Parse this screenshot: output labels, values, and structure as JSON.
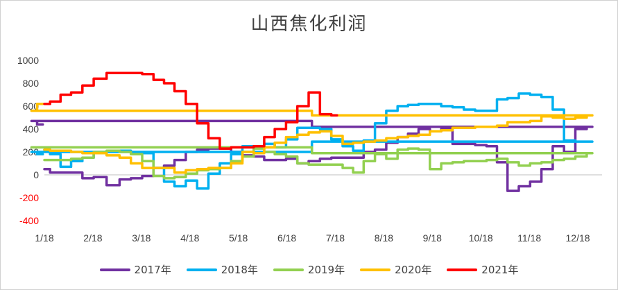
{
  "chart_data": {
    "type": "line",
    "title": "山西焦化利润",
    "xlabel": "",
    "ylabel": "",
    "x_ticks": [
      "1/18",
      "2/18",
      "3/18",
      "4/18",
      "5/18",
      "6/18",
      "7/18",
      "8/18",
      "9/18",
      "10/18",
      "11/18",
      "12/18"
    ],
    "y_ticks": [
      1000,
      800,
      600,
      400,
      200,
      0,
      -200,
      -400
    ],
    "ylim": [
      -400,
      1000
    ],
    "negative_tick_color": "#ff0000",
    "grid": false,
    "legend_position": "bottom",
    "series": [
      {
        "name": "2017年",
        "color": "#7030a0",
        "points": [
          [
            "1/18",
            50
          ],
          [
            "1/25",
            20
          ],
          [
            "2/1",
            20
          ],
          [
            "2/8",
            20
          ],
          [
            "2/15",
            -30
          ],
          [
            "2/22",
            -20
          ],
          [
            "3/1",
            -90
          ],
          [
            "3/8",
            -40
          ],
          [
            "3/15",
            -30
          ],
          [
            "3/22",
            -10
          ],
          [
            "3/29",
            60
          ],
          [
            "4/5",
            80
          ],
          [
            "4/12",
            130
          ],
          [
            "4/19",
            200
          ],
          [
            "4/26",
            220
          ],
          [
            "5/3",
            230
          ],
          [
            "5/10",
            230
          ],
          [
            "5/17",
            200
          ],
          [
            "5/24",
            170
          ],
          [
            "5/31",
            160
          ],
          [
            "6/7",
            130
          ],
          [
            "6/14",
            130
          ],
          [
            "6/21",
            140
          ],
          [
            "6/28",
            100
          ],
          [
            "7/5",
            120
          ],
          [
            "7/12",
            140
          ],
          [
            "7/19",
            150
          ],
          [
            "7/26",
            150
          ],
          [
            "8/2",
            150
          ],
          [
            "8/9",
            200
          ],
          [
            "8/16",
            220
          ],
          [
            "8/23",
            280
          ],
          [
            "8/30",
            330
          ],
          [
            "9/6",
            360
          ],
          [
            "9/13",
            400
          ],
          [
            "9/20",
            380
          ],
          [
            "9/27",
            400
          ],
          [
            "10/4",
            270
          ],
          [
            "10/11",
            270
          ],
          [
            "10/18",
            260
          ],
          [
            "10/25",
            250
          ],
          [
            "11/1",
            110
          ],
          [
            "11/8",
            -140
          ],
          [
            "11/15",
            -100
          ],
          [
            "11/22",
            -60
          ],
          [
            "11/29",
            50
          ],
          [
            "12/6",
            250
          ],
          [
            "12/13",
            200
          ],
          [
            "12/20",
            400
          ],
          [
            "12/27",
            420
          ],
          [
            "1/10",
            470
          ],
          [
            "1/17",
            440
          ]
        ]
      },
      {
        "name": "2018年",
        "color": "#00b0f0",
        "points": [
          [
            "1/18",
            220
          ],
          [
            "1/25",
            180
          ],
          [
            "2/1",
            70
          ],
          [
            "2/8",
            120
          ],
          [
            "2/15",
            150
          ],
          [
            "2/22",
            200
          ],
          [
            "3/1",
            200
          ],
          [
            "3/8",
            210
          ],
          [
            "3/15",
            200
          ],
          [
            "3/22",
            190
          ],
          [
            "3/29",
            60
          ],
          [
            "4/5",
            -60
          ],
          [
            "4/12",
            -100
          ],
          [
            "4/19",
            -50
          ],
          [
            "4/26",
            -120
          ],
          [
            "5/3",
            10
          ],
          [
            "5/10",
            100
          ],
          [
            "5/17",
            180
          ],
          [
            "5/24",
            250
          ],
          [
            "5/31",
            240
          ],
          [
            "6/7",
            270
          ],
          [
            "6/14",
            240
          ],
          [
            "6/21",
            310
          ],
          [
            "6/28",
            410
          ],
          [
            "7/5",
            410
          ],
          [
            "7/12",
            400
          ],
          [
            "7/19",
            310
          ],
          [
            "7/26",
            250
          ],
          [
            "8/2",
            210
          ],
          [
            "8/9",
            300
          ],
          [
            "8/16",
            450
          ],
          [
            "8/23",
            560
          ],
          [
            "8/30",
            600
          ],
          [
            "9/6",
            610
          ],
          [
            "9/13",
            620
          ],
          [
            "9/20",
            620
          ],
          [
            "9/27",
            600
          ],
          [
            "10/4",
            590
          ],
          [
            "10/11",
            570
          ],
          [
            "10/18",
            560
          ],
          [
            "10/25",
            560
          ],
          [
            "11/1",
            660
          ],
          [
            "11/8",
            670
          ],
          [
            "11/15",
            710
          ],
          [
            "11/22",
            700
          ],
          [
            "11/29",
            680
          ],
          [
            "12/6",
            570
          ],
          [
            "12/13",
            300
          ],
          [
            "12/20",
            290
          ],
          [
            "12/27",
            290
          ],
          [
            "1/10",
            200
          ],
          [
            "1/17",
            180
          ]
        ]
      },
      {
        "name": "2019年",
        "color": "#92d050",
        "points": [
          [
            "1/18",
            130
          ],
          [
            "1/25",
            130
          ],
          [
            "2/1",
            130
          ],
          [
            "2/8",
            140
          ],
          [
            "2/15",
            150
          ],
          [
            "2/22",
            200
          ],
          [
            "3/1",
            210
          ],
          [
            "3/8",
            200
          ],
          [
            "3/15",
            180
          ],
          [
            "3/22",
            120
          ],
          [
            "3/29",
            -10
          ],
          [
            "4/5",
            -30
          ],
          [
            "4/12",
            -20
          ],
          [
            "4/19",
            10
          ],
          [
            "4/26",
            40
          ],
          [
            "5/3",
            50
          ],
          [
            "5/10",
            60
          ],
          [
            "5/17",
            120
          ],
          [
            "5/24",
            160
          ],
          [
            "5/31",
            230
          ],
          [
            "6/7",
            200
          ],
          [
            "6/14",
            180
          ],
          [
            "6/21",
            160
          ],
          [
            "6/28",
            100
          ],
          [
            "7/5",
            90
          ],
          [
            "7/12",
            90
          ],
          [
            "7/19",
            90
          ],
          [
            "7/26",
            60
          ],
          [
            "8/2",
            20
          ],
          [
            "8/9",
            120
          ],
          [
            "8/16",
            180
          ],
          [
            "8/23",
            140
          ],
          [
            "8/30",
            220
          ],
          [
            "9/6",
            230
          ],
          [
            "9/13",
            220
          ],
          [
            "9/20",
            50
          ],
          [
            "9/27",
            100
          ],
          [
            "10/4",
            110
          ],
          [
            "10/11",
            120
          ],
          [
            "10/18",
            120
          ],
          [
            "10/25",
            130
          ],
          [
            "11/1",
            140
          ],
          [
            "11/8",
            110
          ],
          [
            "11/15",
            80
          ],
          [
            "11/22",
            100
          ],
          [
            "11/29",
            110
          ],
          [
            "12/6",
            130
          ],
          [
            "12/13",
            140
          ],
          [
            "12/20",
            160
          ],
          [
            "12/27",
            190
          ],
          [
            "1/10",
            240
          ],
          [
            "1/17",
            240
          ]
        ]
      },
      {
        "name": "2020年",
        "color": "#ffc000",
        "points": [
          [
            "1/18",
            220
          ],
          [
            "1/25",
            210
          ],
          [
            "2/1",
            210
          ],
          [
            "2/8",
            200
          ],
          [
            "2/15",
            190
          ],
          [
            "2/22",
            190
          ],
          [
            "3/1",
            170
          ],
          [
            "3/8",
            150
          ],
          [
            "3/15",
            100
          ],
          [
            "3/22",
            60
          ],
          [
            "3/29",
            60
          ],
          [
            "4/5",
            60
          ],
          [
            "4/12",
            20
          ],
          [
            "4/19",
            40
          ],
          [
            "4/26",
            50
          ],
          [
            "5/3",
            60
          ],
          [
            "5/10",
            60
          ],
          [
            "5/17",
            100
          ],
          [
            "5/24",
            200
          ],
          [
            "5/31",
            190
          ],
          [
            "6/7",
            240
          ],
          [
            "6/14",
            280
          ],
          [
            "6/21",
            330
          ],
          [
            "6/28",
            350
          ],
          [
            "7/5",
            370
          ],
          [
            "7/12",
            380
          ],
          [
            "7/19",
            340
          ],
          [
            "7/26",
            270
          ],
          [
            "8/2",
            280
          ],
          [
            "8/9",
            290
          ],
          [
            "8/16",
            300
          ],
          [
            "8/23",
            320
          ],
          [
            "8/30",
            330
          ],
          [
            "9/6",
            340
          ],
          [
            "9/13",
            350
          ],
          [
            "9/20",
            380
          ],
          [
            "9/27",
            390
          ],
          [
            "10/4",
            410
          ],
          [
            "10/11",
            410
          ],
          [
            "10/18",
            420
          ],
          [
            "10/25",
            420
          ],
          [
            "11/1",
            430
          ],
          [
            "11/8",
            460
          ],
          [
            "11/15",
            460
          ],
          [
            "11/22",
            470
          ],
          [
            "11/29",
            510
          ],
          [
            "12/6",
            500
          ],
          [
            "12/13",
            490
          ],
          [
            "12/20",
            500
          ],
          [
            "12/27",
            520
          ],
          [
            "1/10",
            560
          ],
          [
            "1/17",
            620
          ]
        ]
      },
      {
        "name": "2021年",
        "color": "#ff0000",
        "points": [
          [
            "1/18",
            620
          ],
          [
            "1/25",
            640
          ],
          [
            "2/1",
            700
          ],
          [
            "2/8",
            720
          ],
          [
            "2/15",
            780
          ],
          [
            "2/22",
            840
          ],
          [
            "3/1",
            890
          ],
          [
            "3/8",
            890
          ],
          [
            "3/15",
            890
          ],
          [
            "3/22",
            880
          ],
          [
            "3/29",
            830
          ],
          [
            "4/5",
            800
          ],
          [
            "4/12",
            730
          ],
          [
            "4/19",
            620
          ],
          [
            "4/26",
            450
          ],
          [
            "5/3",
            320
          ],
          [
            "5/10",
            230
          ],
          [
            "5/17",
            240
          ],
          [
            "5/24",
            240
          ],
          [
            "5/31",
            250
          ],
          [
            "6/7",
            330
          ],
          [
            "6/14",
            400
          ],
          [
            "6/21",
            460
          ],
          [
            "6/28",
            600
          ],
          [
            "7/5",
            720
          ],
          [
            "7/12",
            530
          ],
          [
            "7/19",
            520
          ]
        ]
      }
    ]
  }
}
